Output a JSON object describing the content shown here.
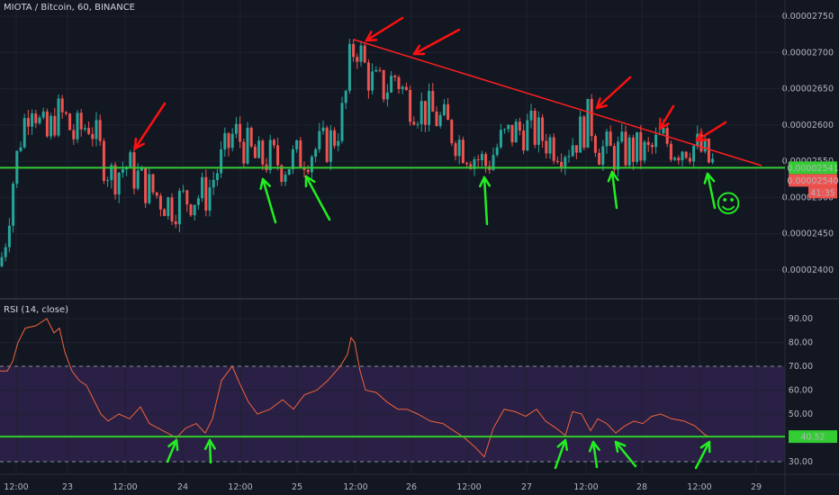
{
  "header": {
    "symbol_title": "MIOTA / Bitcoin, 60, BINANCE"
  },
  "rsi_panel": {
    "title": "RSI (14, close)"
  },
  "colors": {
    "background": "#131722",
    "grid": "#1e2230",
    "up_candle": "#26a69a",
    "down_candle": "#ef5350",
    "support_line": "#33cc33",
    "trend_line": "#ff1f1f",
    "arrow_red": "#ff1010",
    "arrow_green": "#22ee22",
    "rsi_line": "#f0643a",
    "rsi_band": "#2a1f45"
  },
  "chart_data": [
    {
      "type": "candlestick",
      "title": "MIOTA / Bitcoin, 60, BINANCE",
      "y_ticks": [
        "0.00002750",
        "0.00002700",
        "0.00002650",
        "0.00002600",
        "0.00002550",
        "0.00002500",
        "0.00002450",
        "0.00002400"
      ],
      "x_ticks": [
        "12:00",
        "23",
        "12:00",
        "24",
        "12:00",
        "25",
        "12:00",
        "26",
        "12:00",
        "27",
        "12:00",
        "28",
        "12:00",
        "29"
      ],
      "ylim": [
        2.38e-05,
        2.77e-05
      ],
      "price_labels": [
        {
          "text": "0.00002541",
          "color": "#33cc33",
          "value": 2.541e-05
        },
        {
          "text": "0.00002540",
          "color": "#ef5350",
          "value": 2.54e-05
        },
        {
          "text": "41:35",
          "color": "#ef5350"
        }
      ],
      "support_level": 2.541e-05,
      "trend_line": {
        "from": [
          "26 12:00",
          2.72e-05
        ],
        "to": [
          "29 00:00",
          2.54e-05
        ]
      },
      "smiley": "☺"
    },
    {
      "type": "line",
      "title": "RSI (14, close)",
      "y_ticks": [
        "90.00",
        "80.00",
        "70.00",
        "60.00",
        "50.00",
        "40.00",
        "30.00"
      ],
      "ylim": [
        25,
        95
      ],
      "band": [
        30,
        70
      ],
      "support_level": 40.52,
      "value_label": "40.52"
    }
  ]
}
